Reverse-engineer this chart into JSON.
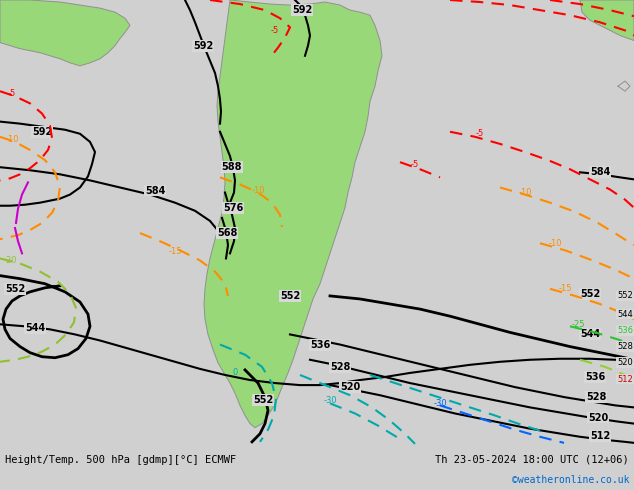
{
  "title_left": "Height/Temp. 500 hPa [gdmp][°C] ECMWF",
  "title_right": "Th 23-05-2024 18:00 UTC (12+06)",
  "credit": "©weatheronline.co.uk",
  "background_color": "#d8d8d8",
  "land_color": "#90ee90",
  "border_color": "#808080",
  "fig_bg": "#c8c8c8",
  "bottom_bar_color": "#e8e8e8"
}
